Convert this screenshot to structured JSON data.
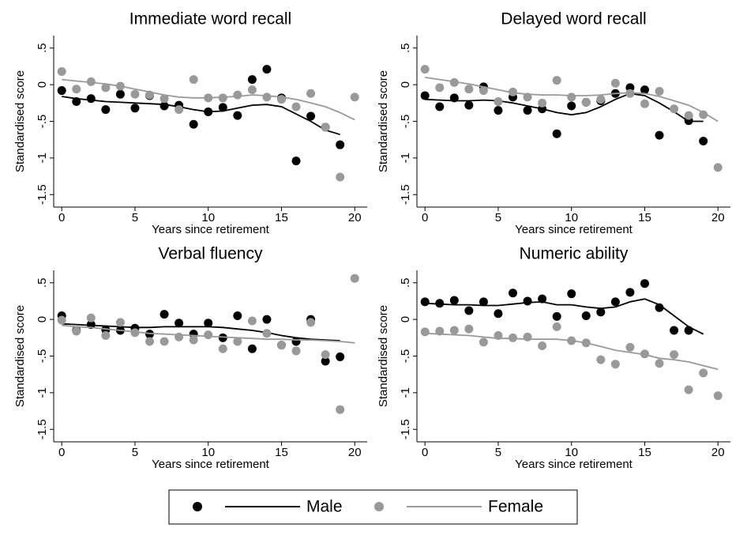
{
  "chart_data": [
    {
      "type": "scatter",
      "title": "Immediate word recall",
      "xlabel": "Years since retirement",
      "ylabel": "Standardised score",
      "x": [
        0,
        1,
        2,
        3,
        4,
        5,
        6,
        7,
        8,
        9,
        10,
        11,
        12,
        13,
        14,
        15,
        16,
        17,
        18,
        19,
        20
      ],
      "xlim": [
        -0.55,
        20.85
      ],
      "ylim": [
        -1.67,
        0.67
      ],
      "xticks": [
        0,
        5,
        10,
        15,
        20
      ],
      "yticks": [
        {
          "value": -1.5,
          "label": "-1.5"
        },
        -1,
        {
          "value": -0.5,
          "label": "-.5"
        },
        0,
        {
          "value": 0.5,
          "label": ".5"
        }
      ],
      "series": [
        {
          "color": "#000000",
          "values": [
            -0.08,
            -0.23,
            -0.19,
            -0.34,
            -0.13,
            -0.32,
            -0.15,
            -0.29,
            -0.28,
            -0.54,
            -0.37,
            -0.31,
            -0.42,
            0.07,
            0.21,
            -0.18,
            -1.04,
            -0.43,
            -0.58,
            -0.82,
            null
          ],
          "smooth": [
            -0.16,
            -0.19,
            -0.21,
            -0.23,
            -0.24,
            -0.25,
            -0.26,
            -0.27,
            -0.3,
            -0.34,
            -0.37,
            -0.36,
            -0.32,
            -0.28,
            -0.27,
            -0.3,
            -0.4,
            -0.5,
            -0.62,
            -0.68,
            null
          ]
        },
        {
          "color": "#999999",
          "values": [
            0.18,
            -0.06,
            0.04,
            -0.04,
            -0.02,
            -0.13,
            -0.14,
            -0.19,
            -0.34,
            0.07,
            -0.18,
            -0.18,
            -0.14,
            -0.07,
            -0.17,
            -0.2,
            -0.3,
            -0.12,
            -0.58,
            -1.26,
            -0.17
          ],
          "smooth": [
            0.07,
            0.05,
            0.03,
            0.01,
            -0.02,
            -0.06,
            -0.1,
            -0.14,
            -0.17,
            -0.18,
            -0.18,
            -0.17,
            -0.16,
            -0.14,
            -0.15,
            -0.17,
            -0.2,
            -0.25,
            -0.3,
            -0.38,
            -0.48
          ]
        }
      ]
    },
    {
      "type": "scatter",
      "title": "Delayed word recall",
      "xlabel": "Years since retirement",
      "ylabel": "Standardised score",
      "x": [
        0,
        1,
        2,
        3,
        4,
        5,
        6,
        7,
        8,
        9,
        10,
        11,
        12,
        13,
        14,
        15,
        16,
        17,
        18,
        19,
        20
      ],
      "xlim": [
        -0.55,
        20.85
      ],
      "ylim": [
        -1.67,
        0.67
      ],
      "xticks": [
        0,
        5,
        10,
        15,
        20
      ],
      "yticks": [
        {
          "value": -1.5,
          "label": "-1.5"
        },
        -1,
        {
          "value": -0.5,
          "label": "-.5"
        },
        0,
        {
          "value": 0.5,
          "label": ".5"
        }
      ],
      "series": [
        {
          "color": "#000000",
          "values": [
            -0.15,
            -0.3,
            -0.18,
            -0.28,
            -0.03,
            -0.35,
            -0.17,
            -0.35,
            -0.33,
            -0.67,
            -0.29,
            -0.24,
            -0.22,
            -0.12,
            -0.04,
            -0.07,
            -0.69,
            null,
            -0.49,
            -0.77,
            null
          ],
          "smooth": [
            -0.2,
            -0.21,
            -0.22,
            -0.22,
            -0.21,
            -0.22,
            -0.25,
            -0.29,
            -0.33,
            -0.38,
            -0.41,
            -0.38,
            -0.3,
            -0.2,
            -0.12,
            -0.15,
            -0.25,
            -0.37,
            -0.5,
            -0.5,
            null
          ]
        },
        {
          "color": "#999999",
          "values": [
            0.21,
            -0.04,
            0.03,
            -0.06,
            -0.08,
            -0.23,
            -0.1,
            -0.17,
            -0.25,
            0.06,
            -0.17,
            -0.24,
            -0.2,
            0.02,
            -0.12,
            -0.26,
            -0.09,
            -0.33,
            -0.42,
            -0.41,
            -1.13
          ],
          "smooth": [
            0.1,
            0.07,
            0.04,
            0.01,
            -0.03,
            -0.07,
            -0.11,
            -0.13,
            -0.14,
            -0.14,
            -0.15,
            -0.15,
            -0.14,
            -0.12,
            -0.11,
            -0.12,
            -0.16,
            -0.22,
            -0.28,
            -0.38,
            -0.5
          ]
        }
      ]
    },
    {
      "type": "scatter",
      "title": "Verbal fluency",
      "xlabel": "Years since retirement",
      "ylabel": "Standardised score",
      "x": [
        0,
        1,
        2,
        3,
        4,
        5,
        6,
        7,
        8,
        9,
        10,
        11,
        12,
        13,
        14,
        15,
        16,
        17,
        18,
        19,
        20
      ],
      "xlim": [
        -0.55,
        20.85
      ],
      "ylim": [
        -1.67,
        0.67
      ],
      "xticks": [
        0,
        5,
        10,
        15,
        20
      ],
      "yticks": [
        {
          "value": -1.5,
          "label": "-1.5"
        },
        -1,
        {
          "value": -0.5,
          "label": "-.5"
        },
        0,
        {
          "value": 0.5,
          "label": ".5"
        }
      ],
      "series": [
        {
          "color": "#000000",
          "values": [
            0.05,
            -0.15,
            -0.07,
            -0.14,
            -0.15,
            -0.12,
            -0.2,
            0.07,
            -0.05,
            -0.2,
            -0.05,
            -0.25,
            0.05,
            -0.4,
            0.0,
            -0.35,
            -0.3,
            0.0,
            -0.57,
            -0.51,
            null
          ],
          "smooth": [
            -0.06,
            -0.07,
            -0.08,
            -0.09,
            -0.1,
            -0.11,
            -0.11,
            -0.1,
            -0.1,
            -0.1,
            -0.1,
            -0.11,
            -0.13,
            -0.15,
            -0.18,
            -0.22,
            -0.25,
            -0.27,
            -0.28,
            -0.29,
            null
          ]
        },
        {
          "color": "#999999",
          "values": [
            -0.01,
            -0.16,
            0.02,
            -0.22,
            -0.04,
            -0.18,
            -0.3,
            -0.3,
            -0.24,
            -0.28,
            -0.21,
            -0.4,
            -0.3,
            -0.02,
            -0.19,
            -0.35,
            -0.43,
            -0.04,
            -0.48,
            -1.23,
            0.56
          ],
          "smooth": [
            -0.08,
            -0.1,
            -0.11,
            -0.13,
            -0.15,
            -0.17,
            -0.19,
            -0.2,
            -0.21,
            -0.22,
            -0.23,
            -0.24,
            -0.25,
            -0.26,
            -0.27,
            -0.27,
            -0.28,
            -0.28,
            -0.29,
            -0.3,
            -0.32
          ]
        }
      ]
    },
    {
      "type": "scatter",
      "title": "Numeric ability",
      "xlabel": "Years since retirement",
      "ylabel": "Standardised score",
      "x": [
        0,
        1,
        2,
        3,
        4,
        5,
        6,
        7,
        8,
        9,
        10,
        11,
        12,
        13,
        14,
        15,
        16,
        17,
        18,
        19,
        20
      ],
      "xlim": [
        -0.55,
        20.85
      ],
      "ylim": [
        -1.67,
        0.67
      ],
      "xticks": [
        0,
        5,
        10,
        15,
        20
      ],
      "yticks": [
        {
          "value": -1.5,
          "label": "-1.5"
        },
        -1,
        {
          "value": -0.5,
          "label": "-.5"
        },
        0,
        {
          "value": 0.5,
          "label": ".5"
        }
      ],
      "series": [
        {
          "color": "#000000",
          "values": [
            0.24,
            0.22,
            0.26,
            0.12,
            0.24,
            0.08,
            0.36,
            0.25,
            0.28,
            0.04,
            0.35,
            0.05,
            0.1,
            0.24,
            0.37,
            0.49,
            0.16,
            -0.15,
            -0.15,
            null,
            null
          ],
          "smooth": [
            0.22,
            0.21,
            0.2,
            0.2,
            0.19,
            0.19,
            0.21,
            0.23,
            0.24,
            0.2,
            0.2,
            0.17,
            0.15,
            0.17,
            0.24,
            0.28,
            0.2,
            0.05,
            -0.1,
            -0.2,
            null
          ]
        },
        {
          "color": "#999999",
          "values": [
            -0.17,
            -0.16,
            -0.15,
            -0.13,
            -0.31,
            -0.22,
            -0.25,
            -0.24,
            -0.36,
            -0.1,
            -0.29,
            -0.32,
            -0.55,
            -0.61,
            -0.38,
            -0.47,
            -0.6,
            -0.48,
            -0.96,
            -0.73,
            -1.04
          ],
          "smooth": [
            -0.19,
            -0.2,
            -0.21,
            -0.22,
            -0.24,
            -0.26,
            -0.26,
            -0.27,
            -0.27,
            -0.27,
            -0.29,
            -0.32,
            -0.37,
            -0.42,
            -0.45,
            -0.48,
            -0.53,
            -0.55,
            -0.58,
            -0.63,
            -0.68
          ]
        }
      ]
    }
  ],
  "legend": {
    "entries": [
      {
        "name": "Male",
        "color": "#000000"
      },
      {
        "name": "Female",
        "color": "#999999"
      }
    ]
  }
}
